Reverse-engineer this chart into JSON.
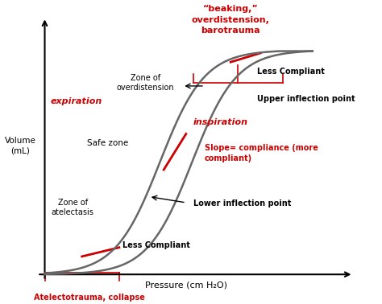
{
  "background_color": "#ffffff",
  "curve_color": "#666666",
  "red_color": "#cc0000",
  "ylabel": "Volume\n(mL)",
  "xlabel": "Pressure (cm H₂O)",
  "title_text": "“beaking,”\noverdistension,\nbarotrauma",
  "labels": {
    "expiration": "expiration",
    "inspiration": "inspiration",
    "zone_overdistension": "Zone of\noverdistension",
    "safe_zone": "Safe zone",
    "zone_atelectasis": "Zone of\natelectasis",
    "upper_inflection": "Upper inflection point",
    "lower_inflection": "Lower inflection point",
    "slope_compliance": "Slope= compliance (more\ncompliant)",
    "less_compliant_top": "Less Compliant",
    "less_compliant_bottom": "Less Compliant",
    "atelectotrauma": "Atelectotrauma, collapse"
  }
}
